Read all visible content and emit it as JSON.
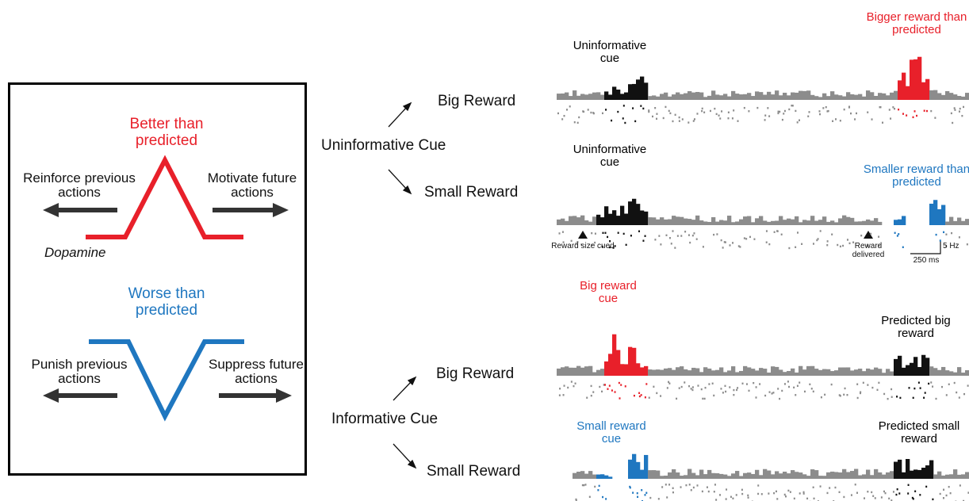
{
  "colors": {
    "red": "#e8202a",
    "blue": "#1f77c0",
    "gray": "#8c8c8c",
    "black": "#111111",
    "arrow": "#333333"
  },
  "schematic": {
    "better_title": "Better than predicted",
    "better_left": "Reinforce previous actions",
    "better_right": "Motivate future actions",
    "dopamine": "Dopamine",
    "worse_title": "Worse than predicted",
    "worse_left": "Punish previous actions",
    "worse_right": "Suppress future actions"
  },
  "conditions": {
    "uninformative": "Uninformative Cue",
    "informative": "Informative Cue",
    "big": "Big Reward",
    "small": "Small Reward"
  },
  "events": {
    "uninf_cue_1": "Uninformative cue",
    "bigger_reward": "Bigger reward than predicted",
    "uninf_cue_2": "Uninformative cue",
    "smaller_reward": "Smaller reward than predicted",
    "big_reward_cue": "Big reward cue",
    "predicted_big": "Predicted big reward",
    "small_reward_cue": "Small reward cue",
    "predicted_small": "Predicted small reward"
  },
  "markers": {
    "cue_marker": "Reward size cued",
    "reward_marker": "Reward delivered",
    "scale_hz": "5 Hz",
    "scale_ms": "250 ms"
  }
}
